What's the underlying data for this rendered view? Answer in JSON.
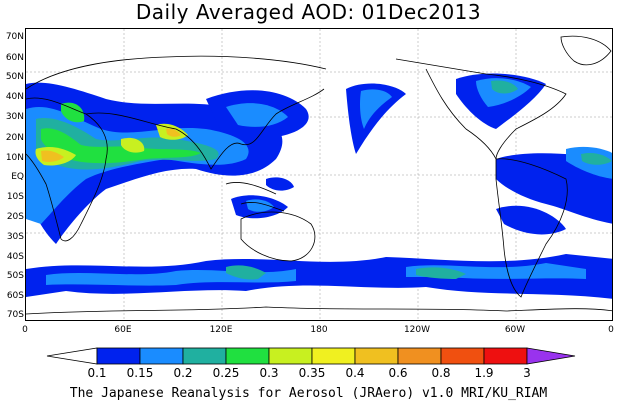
{
  "title": "Daily Averaged AOD: 01Dec2013",
  "credit": "The Japanese Reanalysis for Aerosol (JRAero) v1.0 MRI/KU_RIAM",
  "lat_labels": [
    "70N",
    "60N",
    "50N",
    "40N",
    "30N",
    "20N",
    "10N",
    "EQ",
    "10S",
    "20S",
    "30S",
    "40S",
    "50S",
    "60S",
    "70S"
  ],
  "lon_labels": [
    "0",
    "60E",
    "120E",
    "180",
    "120W",
    "60W",
    "0"
  ],
  "colorbar": {
    "levels": [
      "0.1",
      "0.15",
      "0.2",
      "0.25",
      "0.3",
      "0.35",
      "0.4",
      "0.6",
      "0.8",
      "1.9",
      "3"
    ],
    "colors": [
      "#ffffff",
      "#0022ee",
      "#1a8cff",
      "#20b0a0",
      "#20e040",
      "#c8f020",
      "#f0f020",
      "#f0c020",
      "#f09020",
      "#f05010",
      "#ee1010",
      "#9933ee"
    ]
  }
}
